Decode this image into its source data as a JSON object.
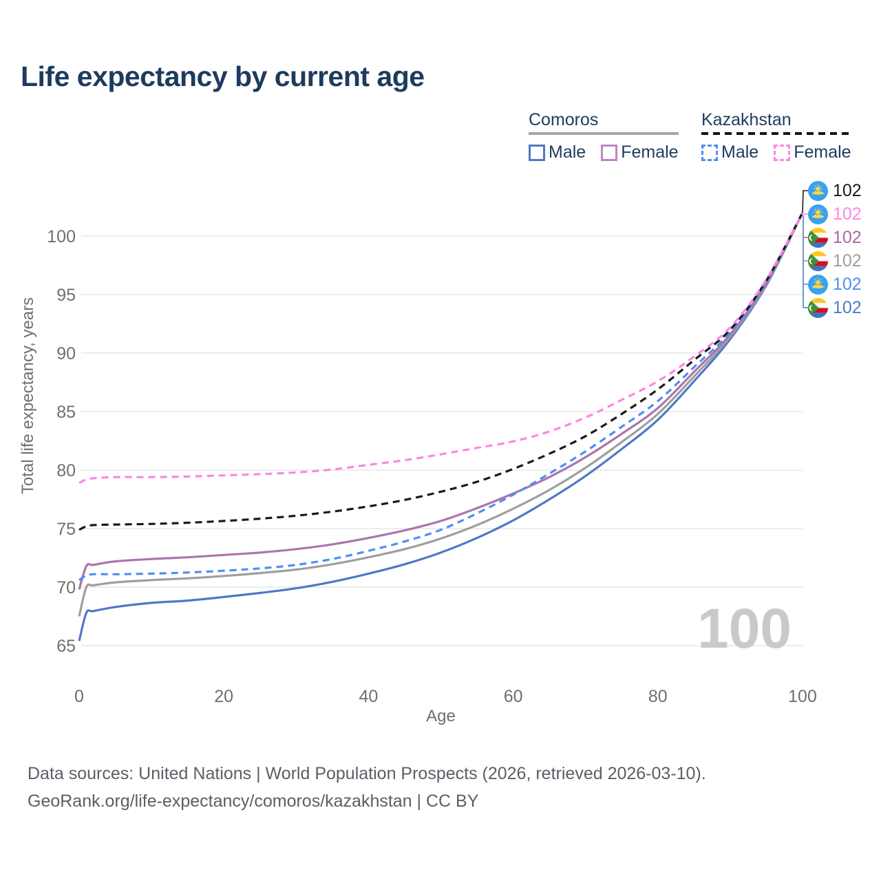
{
  "title": "Life expectancy by current age",
  "legend": {
    "groups": [
      {
        "label": "Comoros",
        "line_style": "solid",
        "underline_color": "#a6a6a6",
        "items": [
          {
            "label": "Male",
            "color": "#4e79c5",
            "dashed": false
          },
          {
            "label": "Female",
            "color": "#c083c8",
            "dashed": false
          }
        ]
      },
      {
        "label": "Kazakhstan",
        "line_style": "dashed",
        "underline_color": "#141414",
        "items": [
          {
            "label": "Male",
            "color": "#4e8ef5",
            "dashed": true
          },
          {
            "label": "Female",
            "color": "#fb86e4",
            "dashed": true
          }
        ]
      }
    ]
  },
  "chart_data": {
    "type": "line",
    "title": "Life expectancy by current age",
    "xlabel": "Age",
    "ylabel": "Total life expectancy, years",
    "x_ticks": [
      0,
      20,
      40,
      60,
      80,
      100
    ],
    "y_ticks": [
      65,
      70,
      75,
      80,
      85,
      90,
      95,
      100
    ],
    "xlim": [
      0,
      100
    ],
    "ylim": [
      65,
      102.5
    ],
    "grid": true,
    "watermark": "100",
    "x": [
      0,
      1,
      2,
      5,
      10,
      15,
      20,
      25,
      30,
      35,
      40,
      45,
      50,
      55,
      60,
      65,
      70,
      75,
      80,
      85,
      90,
      95,
      100
    ],
    "series": [
      {
        "name": "Comoros Male",
        "country": "Comoros",
        "group": "Male",
        "color": "#4e79c5",
        "dashed": false,
        "values": [
          65.4,
          67.8,
          67.95,
          68.3,
          68.65,
          68.85,
          69.15,
          69.5,
          69.9,
          70.45,
          71.15,
          71.95,
          72.95,
          74.2,
          75.7,
          77.5,
          79.5,
          81.8,
          84.3,
          87.6,
          91.2,
          95.8,
          102
        ]
      },
      {
        "name": "Comoros Both sexes",
        "country": "Comoros",
        "group": "Both",
        "color": "#9e9e9e",
        "dashed": false,
        "values": [
          67.5,
          70.0,
          70.15,
          70.4,
          70.6,
          70.75,
          70.95,
          71.2,
          71.5,
          71.95,
          72.55,
          73.25,
          74.15,
          75.3,
          76.7,
          78.3,
          80.2,
          82.4,
          84.8,
          88.0,
          91.4,
          95.9,
          102
        ]
      },
      {
        "name": "Comoros Female",
        "country": "Comoros",
        "group": "Female",
        "color": "#ab74ad",
        "dashed": false,
        "values": [
          69.8,
          71.8,
          71.9,
          72.2,
          72.4,
          72.55,
          72.75,
          72.95,
          73.25,
          73.65,
          74.2,
          74.85,
          75.65,
          76.75,
          78.0,
          79.4,
          81.1,
          83.1,
          85.3,
          88.4,
          91.6,
          96.0,
          102
        ]
      },
      {
        "name": "Kazakhstan Male",
        "country": "Kazakhstan",
        "group": "Male",
        "color": "#4e8ef5",
        "dashed": true,
        "values": [
          70.6,
          71.0,
          71.1,
          71.1,
          71.15,
          71.25,
          71.4,
          71.6,
          71.9,
          72.4,
          73.1,
          73.9,
          74.9,
          76.3,
          77.9,
          79.7,
          81.6,
          83.7,
          85.9,
          88.8,
          91.8,
          96.1,
          102
        ]
      },
      {
        "name": "Kazakhstan Both sexes",
        "country": "Kazakhstan",
        "group": "Both",
        "color": "#1a1a1a",
        "dashed": true,
        "values": [
          74.9,
          75.2,
          75.3,
          75.35,
          75.4,
          75.5,
          75.65,
          75.85,
          76.1,
          76.45,
          76.9,
          77.45,
          78.15,
          79.0,
          80.1,
          81.4,
          82.9,
          84.8,
          86.9,
          89.4,
          92.0,
          96.2,
          102
        ]
      },
      {
        "name": "Kazakhstan Female",
        "country": "Kazakhstan",
        "group": "Female",
        "color": "#fb86e4",
        "dashed": true,
        "values": [
          78.9,
          79.2,
          79.3,
          79.4,
          79.4,
          79.45,
          79.55,
          79.65,
          79.8,
          80.05,
          80.45,
          80.85,
          81.35,
          81.9,
          82.45,
          83.3,
          84.5,
          86.0,
          87.6,
          89.7,
          92.2,
          96.3,
          102
        ]
      }
    ]
  },
  "endpoint_labels": [
    {
      "flag": "kz",
      "value": "102",
      "color": "#1a1a1a"
    },
    {
      "flag": "kz",
      "value": "102",
      "color": "#fb86e4"
    },
    {
      "flag": "km",
      "value": "102",
      "color": "#a9699f"
    },
    {
      "flag": "km",
      "value": "102",
      "color": "#9e9e9e"
    },
    {
      "flag": "kz",
      "value": "102",
      "color": "#4e8ef5"
    },
    {
      "flag": "km",
      "value": "102",
      "color": "#4e79c5"
    }
  ],
  "footer": {
    "line1": "Data sources: United Nations | World Population Prospects (2026, retrieved 2026-03-10).",
    "line2": "GeoRank.org/life-expectancy/comoros/kazakhstan | CC BY"
  }
}
